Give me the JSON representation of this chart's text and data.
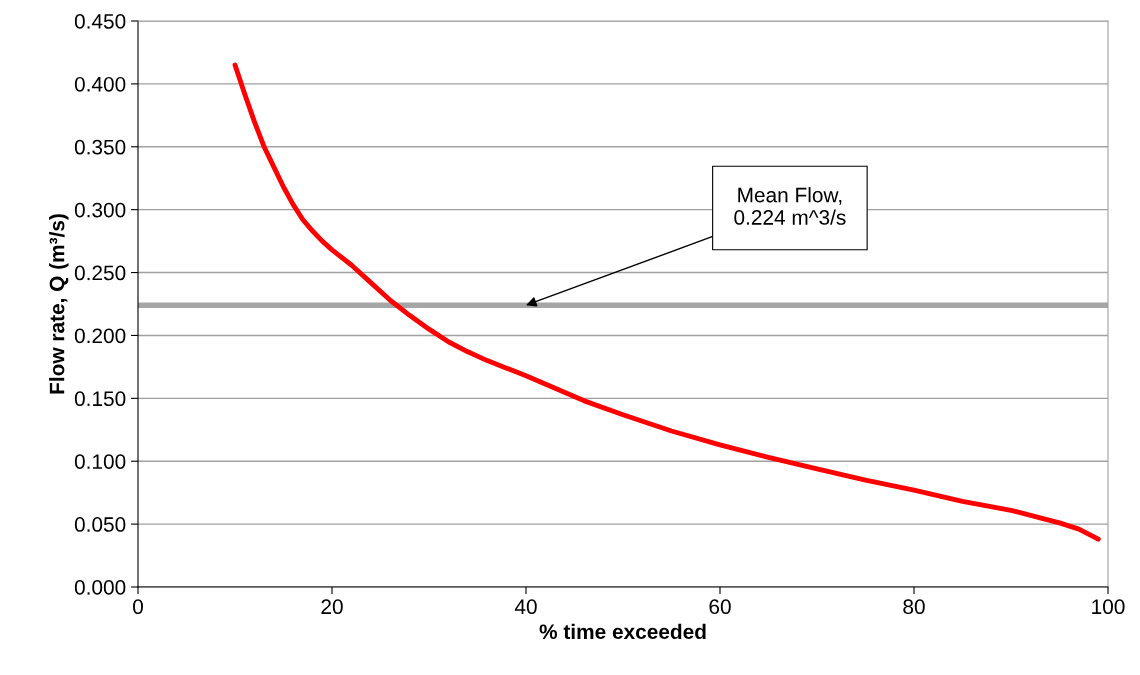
{
  "chart_data": {
    "type": "line",
    "xlabel": "% time exceeded",
    "ylabel": "Flow rate, Q (m³/s)",
    "xlim": [
      0,
      100
    ],
    "xticks": [
      0,
      20,
      40,
      60,
      80,
      100
    ],
    "ylim": [
      0,
      0.45
    ],
    "yticks": [
      {
        "value": 0,
        "label": "0.000"
      },
      {
        "value": 0.05,
        "label": "0.050"
      },
      {
        "value": 0.1,
        "label": "0.100"
      },
      {
        "value": 0.15,
        "label": "0.150"
      },
      {
        "value": 0.2,
        "label": "0.200"
      },
      {
        "value": 0.25,
        "label": "0.250"
      },
      {
        "value": 0.3,
        "label": "0.300"
      },
      {
        "value": 0.35,
        "label": "0.350"
      },
      {
        "value": 0.4,
        "label": "0.400"
      },
      {
        "value": 0.45,
        "label": "0.450"
      }
    ],
    "grid": "y",
    "marker": "none",
    "line_style": "solid",
    "series": [
      {
        "color": "#ff0000",
        "x": [
          10,
          11,
          12,
          13,
          14,
          15,
          16,
          17,
          18,
          19,
          20,
          22,
          24,
          26,
          28,
          30,
          32,
          34,
          36,
          38,
          40,
          43,
          46,
          50,
          55,
          60,
          65,
          70,
          75,
          80,
          85,
          90,
          93,
          95,
          97,
          98,
          99
        ],
        "values": [
          0.415,
          0.392,
          0.37,
          0.35,
          0.334,
          0.318,
          0.304,
          0.292,
          0.283,
          0.275,
          0.268,
          0.256,
          0.242,
          0.228,
          0.216,
          0.205,
          0.195,
          0.187,
          0.18,
          0.174,
          0.168,
          0.158,
          0.148,
          0.137,
          0.124,
          0.113,
          0.103,
          0.094,
          0.085,
          0.077,
          0.068,
          0.061,
          0.055,
          0.051,
          0.046,
          0.042,
          0.038
        ]
      }
    ],
    "ref_lines": [
      {
        "axis": "y",
        "value": 0.224,
        "color": "#a6a6a6",
        "line_style": "solid"
      }
    ],
    "annotations": [
      {
        "text": "Mean Flow,\n0.224 m^3/s",
        "x": 40,
        "y": 0.224
      }
    ]
  }
}
